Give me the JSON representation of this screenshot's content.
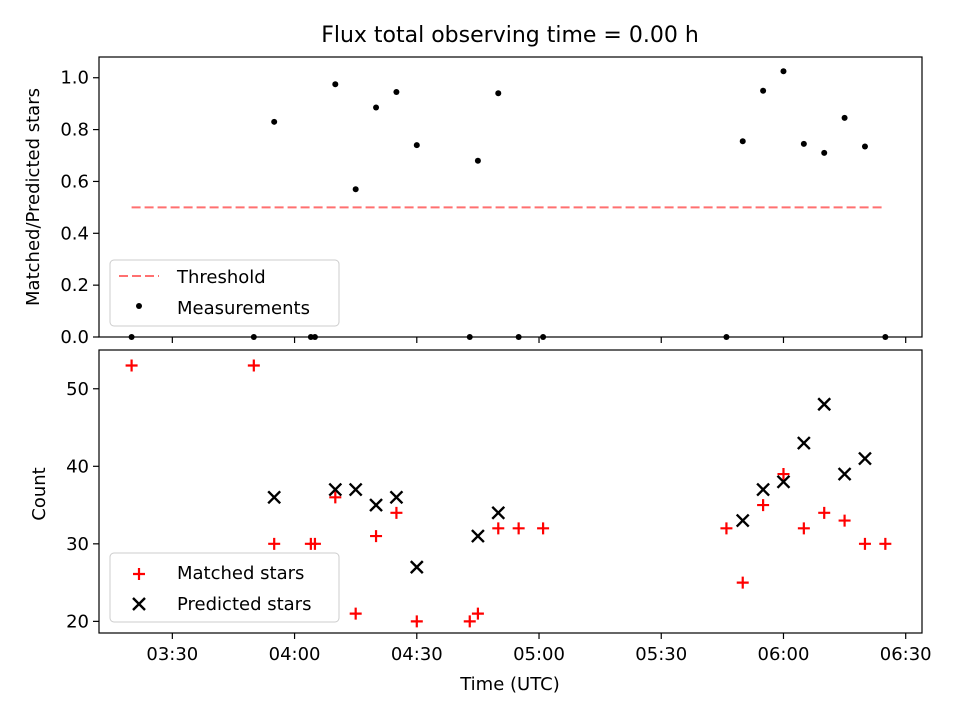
{
  "title": "Flux total observing time = 0.00 h",
  "colors": {
    "threshold": "#ff7070",
    "measurements": "#000000",
    "matched": "#ff0000",
    "predicted": "#000000"
  },
  "chart_data": [
    {
      "type": "scatter",
      "ylabel": "Matched/Predicted stars",
      "xlabel": "",
      "ylim": [
        0,
        1.08
      ],
      "yticks": [
        "0.0",
        "0.2",
        "0.4",
        "0.6",
        "0.8",
        "1.0"
      ],
      "grid": false,
      "legend": "lower-left",
      "series": [
        {
          "name": "Threshold",
          "style": "dashed-line",
          "x": [
            "03:20",
            "06:25"
          ],
          "y": [
            0.5,
            0.5
          ]
        },
        {
          "name": "Measurements",
          "style": "dot",
          "x": [
            "03:20",
            "03:50",
            "03:55",
            "04:04",
            "04:05",
            "04:10",
            "04:15",
            "04:20",
            "04:25",
            "04:30",
            "04:43",
            "04:45",
            "04:50",
            "04:55",
            "05:01",
            "05:46",
            "05:50",
            "05:55",
            "06:00",
            "06:05",
            "06:10",
            "06:15",
            "06:20",
            "06:25"
          ],
          "y": [
            0.0,
            0.0,
            0.83,
            0.0,
            0.0,
            0.975,
            0.57,
            0.885,
            0.945,
            0.74,
            0.0,
            0.68,
            0.94,
            0.0,
            0.0,
            0.0,
            0.755,
            0.95,
            1.025,
            0.745,
            0.71,
            0.845,
            0.735,
            0.0
          ]
        }
      ]
    },
    {
      "type": "scatter",
      "ylabel": "Count",
      "xlabel": "Time (UTC)",
      "xlim": [
        "03:12",
        "06:34"
      ],
      "ylim": [
        18.5,
        55
      ],
      "yticks": [
        "20",
        "30",
        "40",
        "50"
      ],
      "xticks": [
        "03:30",
        "04:00",
        "04:30",
        "05:00",
        "05:30",
        "06:00",
        "06:30"
      ],
      "grid": false,
      "legend": "lower-left",
      "series": [
        {
          "name": "Matched stars",
          "style": "plus",
          "x": [
            "03:20",
            "03:50",
            "03:55",
            "04:04",
            "04:05",
            "04:10",
            "04:15",
            "04:20",
            "04:25",
            "04:30",
            "04:43",
            "04:45",
            "04:50",
            "04:55",
            "05:01",
            "05:46",
            "05:50",
            "05:55",
            "06:00",
            "06:05",
            "06:10",
            "06:15",
            "06:20",
            "06:25"
          ],
          "y": [
            53,
            53,
            30,
            30,
            30,
            36,
            21,
            31,
            34,
            20,
            20,
            21,
            32,
            32,
            32,
            32,
            25,
            35,
            39,
            32,
            34,
            33,
            30,
            30
          ]
        },
        {
          "name": "Predicted stars",
          "style": "x",
          "x": [
            "03:55",
            "04:10",
            "04:15",
            "04:20",
            "04:25",
            "04:30",
            "04:45",
            "04:50",
            "05:50",
            "05:55",
            "06:00",
            "06:05",
            "06:10",
            "06:15",
            "06:20"
          ],
          "y": [
            36,
            37,
            37,
            35,
            36,
            27,
            31,
            34,
            33,
            37,
            38,
            43,
            48,
            39,
            41
          ]
        }
      ]
    }
  ]
}
